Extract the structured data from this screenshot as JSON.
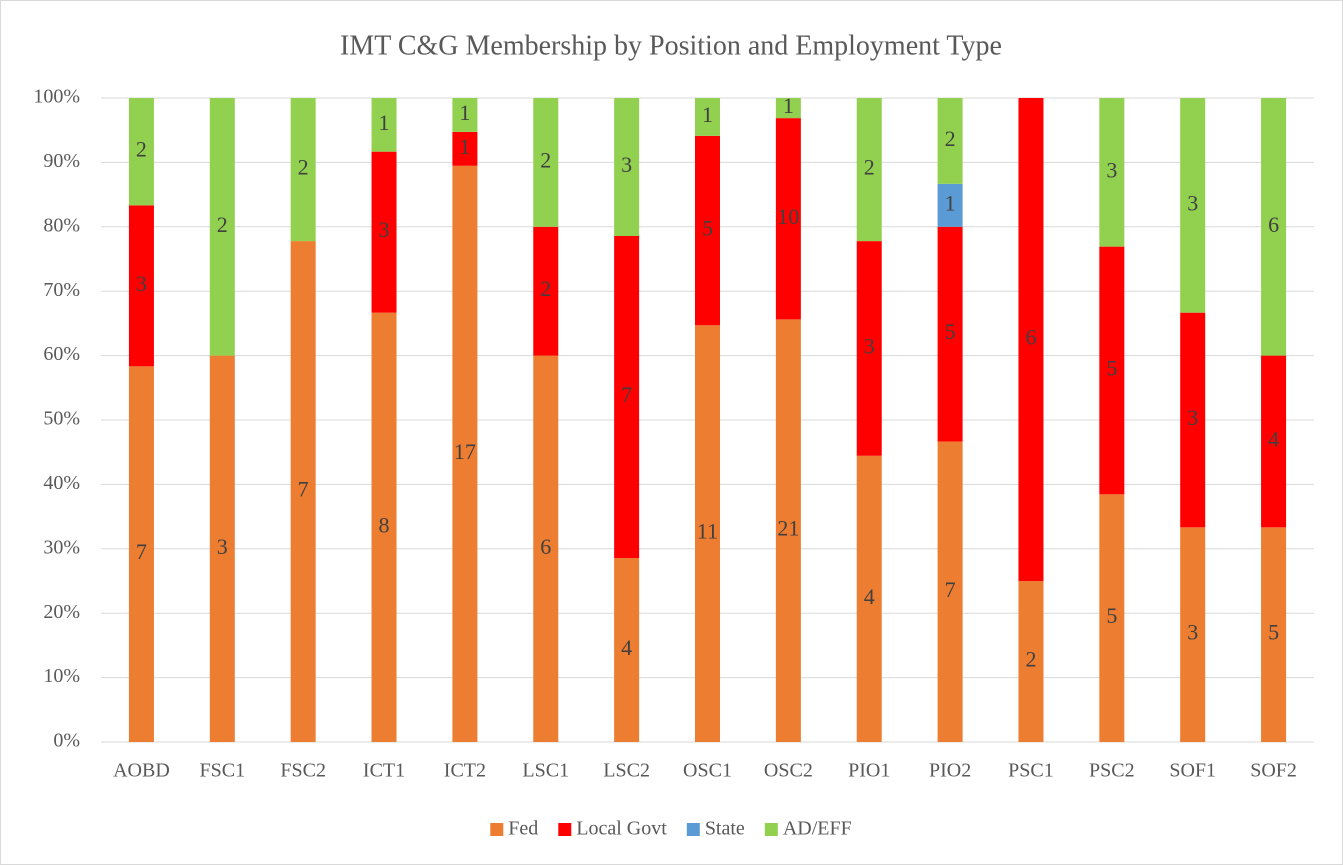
{
  "chart_data": {
    "type": "stacked_bar_percent",
    "title": "IMT C&G Membership by Position and Employment Type",
    "categories": [
      "AOBD",
      "FSC1",
      "FSC2",
      "ICT1",
      "ICT2",
      "LSC1",
      "LSC2",
      "OSC1",
      "OSC2",
      "PIO1",
      "PIO2",
      "PSC1",
      "PSC2",
      "SOF1",
      "SOF2"
    ],
    "series": [
      {
        "name": "Fed",
        "color": "#ED7D31",
        "values": [
          7,
          3,
          7,
          8,
          17,
          6,
          4,
          11,
          21,
          4,
          7,
          2,
          5,
          3,
          5
        ]
      },
      {
        "name": "Local Govt",
        "color": "#FF0000",
        "values": [
          3,
          null,
          null,
          3,
          1,
          2,
          7,
          5,
          10,
          3,
          5,
          6,
          5,
          3,
          4
        ]
      },
      {
        "name": "State",
        "color": "#5B9BD5",
        "values": [
          null,
          null,
          null,
          null,
          null,
          null,
          null,
          null,
          null,
          null,
          1,
          null,
          null,
          null,
          null
        ]
      },
      {
        "name": "AD/EFF",
        "color": "#92D050",
        "values": [
          2,
          2,
          2,
          1,
          1,
          2,
          3,
          1,
          1,
          2,
          2,
          null,
          3,
          3,
          6
        ]
      }
    ],
    "ylim": [
      0,
      100
    ],
    "yticks": [
      {
        "value": 0,
        "label": "0%"
      },
      {
        "value": 10,
        "label": "10%"
      },
      {
        "value": 20,
        "label": "20%"
      },
      {
        "value": 30,
        "label": "30%"
      },
      {
        "value": 40,
        "label": "40%"
      },
      {
        "value": 50,
        "label": "50%"
      },
      {
        "value": 60,
        "label": "60%"
      },
      {
        "value": 70,
        "label": "70%"
      },
      {
        "value": 80,
        "label": "80%"
      },
      {
        "value": 90,
        "label": "90%"
      },
      {
        "value": 100,
        "label": "100%"
      }
    ],
    "grid": true,
    "legend": "bottom"
  }
}
